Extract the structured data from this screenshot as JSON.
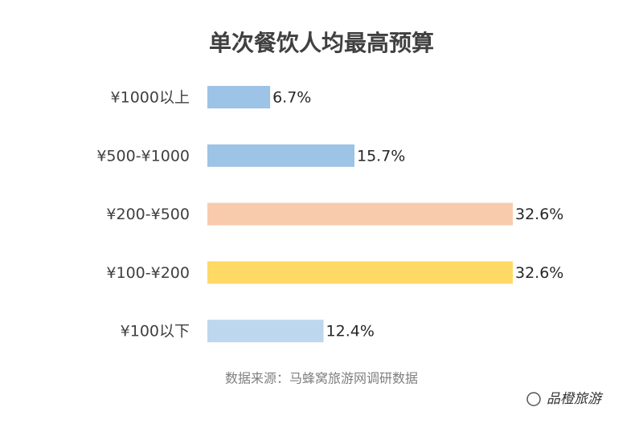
{
  "chart_data": {
    "type": "bar",
    "orientation": "horizontal",
    "title": "单次餐饮人均最高预算",
    "categories": [
      "¥1000以上",
      "¥500-¥1000",
      "¥200-¥500",
      "¥100-¥200",
      "¥100以下"
    ],
    "values": [
      6.7,
      15.7,
      32.6,
      32.6,
      12.4
    ],
    "value_labels": [
      "6.7%",
      "15.7%",
      "32.6%",
      "32.6%",
      "12.4%"
    ],
    "colors": [
      "#9dc3e6",
      "#9dc3e6",
      "#f8cbad",
      "#ffd966",
      "#bdd7ee"
    ],
    "source": "数据来源：马蜂窝旅游网调研数据",
    "watermark": "品橙旅游"
  }
}
